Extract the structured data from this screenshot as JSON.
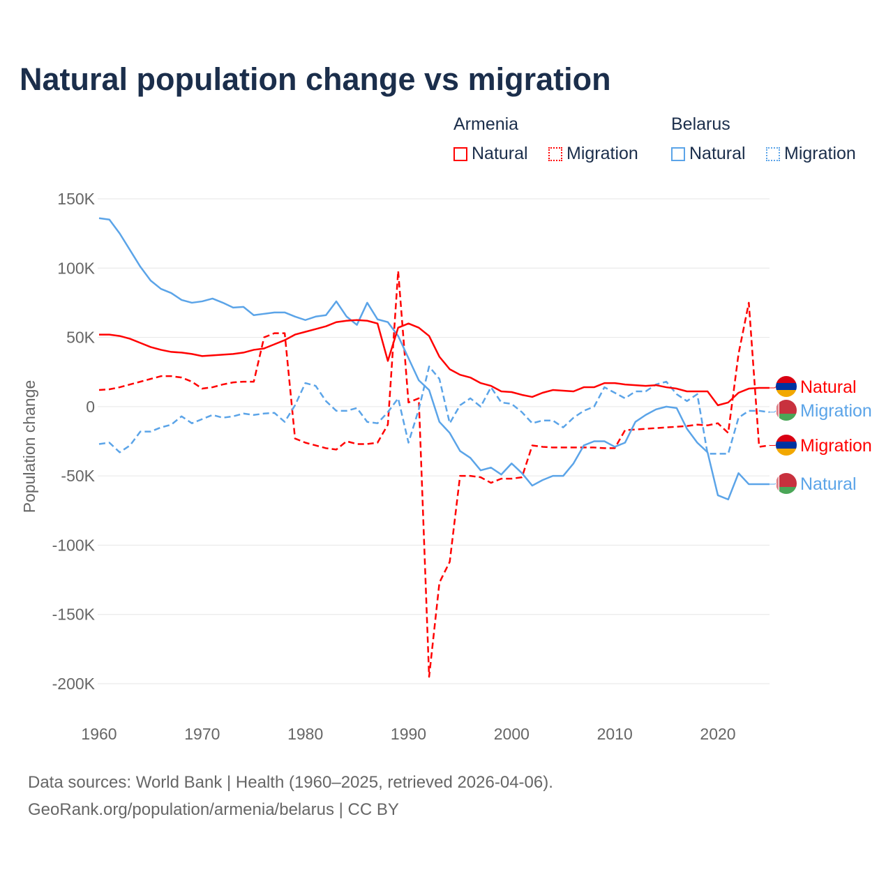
{
  "chart_data": {
    "type": "line",
    "title": "Natural population change vs migration",
    "xlabel": "",
    "ylabel": "Population change",
    "xlim": [
      1960,
      2025
    ],
    "ylim": [
      -200000,
      150000
    ],
    "xticks": [
      1960,
      1970,
      1980,
      1990,
      2000,
      2010,
      2020
    ],
    "xtick_labels": [
      "1960",
      "1970",
      "1980",
      "1990",
      "2000",
      "2010",
      "2020"
    ],
    "yticks": [
      150000,
      100000,
      50000,
      0,
      -50000,
      -100000,
      -150000,
      -200000
    ],
    "ytick_labels": [
      "150K",
      "100K",
      "50K",
      "0",
      "-50K",
      "-100K",
      "-150K",
      "-200K"
    ],
    "grid": true,
    "legend": {
      "groups": [
        {
          "name": "Armenia",
          "items": [
            "Natural",
            "Migration"
          ]
        },
        {
          "name": "Belarus",
          "items": [
            "Natural",
            "Migration"
          ]
        }
      ],
      "placement": "top-right"
    },
    "x_start": 1960,
    "series": [
      {
        "name": "Natural",
        "country": "Armenia",
        "color": "#ff0000",
        "dashed": false,
        "end_label": "Natural",
        "values_k": [
          52,
          52,
          51,
          49,
          46,
          43,
          41,
          39.5,
          39,
          38,
          36.5,
          37,
          37.5,
          38,
          39,
          41,
          42,
          45,
          48,
          52,
          54,
          56,
          58,
          61,
          62,
          62.5,
          62,
          60,
          33,
          57,
          60,
          57,
          51,
          36,
          27,
          23,
          21,
          17,
          15,
          11,
          10.5,
          8.5,
          7,
          10,
          12,
          11.5,
          11,
          14,
          14,
          17,
          17,
          16,
          15.5,
          15,
          15.5,
          14,
          13,
          11,
          11,
          11,
          1,
          3,
          10,
          13,
          13.5,
          13.5
        ]
      },
      {
        "name": "Migration",
        "country": "Armenia",
        "color": "#ff0000",
        "dashed": true,
        "end_label": "Migration",
        "values_k": [
          12,
          12.5,
          14,
          16,
          18,
          20,
          22,
          22,
          21,
          18,
          13,
          14,
          16,
          17.5,
          18,
          18,
          50,
          53,
          53,
          -23,
          -26,
          -28,
          -30,
          -31,
          -25,
          -27,
          -27,
          -26,
          -13,
          98,
          3,
          6,
          -195,
          -127,
          -112,
          -50,
          -50,
          -51,
          -55,
          -52,
          -52,
          -51,
          -28,
          -29,
          -29.5,
          -29.5,
          -29.5,
          -29.5,
          -29.5,
          -30,
          -30,
          -17,
          -16.5,
          -16,
          -15.5,
          -15,
          -14.5,
          -14,
          -13,
          -13.5,
          -12,
          -19,
          38,
          75,
          -29,
          -28
        ]
      },
      {
        "name": "Natural",
        "country": "Belarus",
        "color": "#5ba4e8",
        "dashed": false,
        "end_label": "Natural",
        "values_k": [
          136,
          135,
          125,
          113,
          101,
          91,
          85,
          82,
          77,
          75,
          76,
          78,
          75,
          71.5,
          72,
          66,
          67,
          68,
          68,
          65,
          62.5,
          65,
          66,
          76,
          65,
          59,
          75,
          63,
          61,
          51,
          35,
          19,
          12,
          -11,
          -19,
          -32,
          -37,
          -46,
          -44,
          -49,
          -41,
          -48,
          -57,
          -53,
          -50,
          -50,
          -41,
          -28,
          -25,
          -25,
          -29,
          -26,
          -11,
          -6,
          -2,
          0,
          -1,
          -16,
          -26,
          -33,
          -64,
          -67,
          -48,
          -56,
          -56,
          -56
        ]
      },
      {
        "name": "Migration",
        "country": "Belarus",
        "color": "#5ba4e8",
        "dashed": true,
        "end_label": "Migration",
        "values_k": [
          -27,
          -26,
          -33,
          -28,
          -18,
          -18,
          -15,
          -13,
          -7,
          -12,
          -9,
          -6,
          -8,
          -7,
          -5,
          -6,
          -5,
          -4.5,
          -11,
          1,
          17,
          15,
          4,
          -3,
          -3,
          -1,
          -11,
          -12,
          -4,
          6,
          -26,
          -2,
          29,
          20,
          -12,
          1,
          6,
          0,
          14,
          3,
          2,
          -4,
          -12,
          -10,
          -10,
          -15,
          -8,
          -3,
          0,
          14,
          10,
          6,
          11,
          11,
          16,
          18,
          9,
          4,
          9,
          -34,
          -34,
          -34,
          -8,
          -3,
          -3,
          -4
        ]
      }
    ]
  },
  "footer": {
    "line1": "Data sources: World Bank | Health (1960–2025, retrieved 2026-04-06).",
    "line2": "GeoRank.org/population/armenia/belarus | CC BY"
  }
}
